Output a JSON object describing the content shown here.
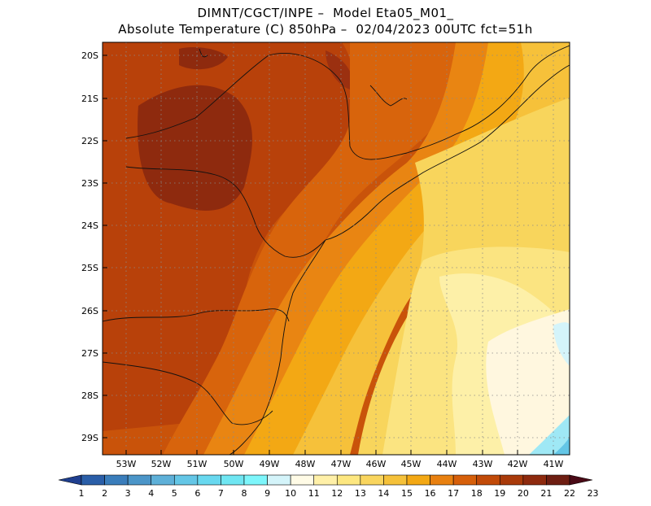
{
  "header": {
    "title_line1": "DIMNT/CGCT/INPE –  Model Eta05_M01_",
    "title_line2": "Absolute Temperature (C) 850hPa –  02/04/2023 00UTC fct=51h"
  },
  "map": {
    "lat_labels": [
      "20S",
      "21S",
      "22S",
      "23S",
      "24S",
      "25S",
      "26S",
      "27S",
      "28S",
      "29S"
    ],
    "lon_labels": [
      "53W",
      "52W",
      "51W",
      "50W",
      "49W",
      "48W",
      "47W",
      "46W",
      "45W",
      "44W",
      "43W",
      "42W",
      "41W"
    ],
    "lat_range": [
      -29.4,
      -19.8
    ],
    "lon_range": [
      -53.3,
      -40.6
    ],
    "region": "Southeastern and Southern Brazil"
  },
  "colorbar": {
    "labels": [
      "1",
      "2",
      "3",
      "4",
      "5",
      "6",
      "7",
      "8",
      "9",
      "10",
      "11",
      "12",
      "13",
      "14",
      "15",
      "16",
      "17",
      "18",
      "19",
      "20",
      "21",
      "22",
      "23"
    ],
    "colors": [
      "#1f3f8f",
      "#2a5ea8",
      "#3a7dbb",
      "#4b95c8",
      "#5eb0d8",
      "#64c6e6",
      "#68d8ef",
      "#6fe6f2",
      "#7df6fb",
      "#d4f4fa",
      "#fffbe6",
      "#fff0a8",
      "#fde780",
      "#f9d55e",
      "#f5c13a",
      "#f3a814",
      "#e88010",
      "#d65f0a",
      "#c14a08",
      "#a93a0a",
      "#8e2a0e",
      "#6e1e12",
      "#4a0a16"
    ]
  }
}
